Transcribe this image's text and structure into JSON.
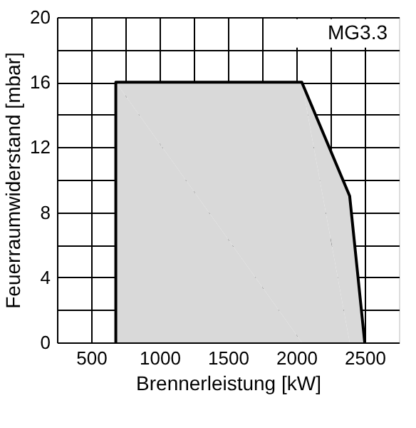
{
  "chart_data": {
    "type": "area",
    "xlabel": "Brennerleistung  [kW]",
    "ylabel": "Feuerraumwiderstand [mbar]",
    "annotations": [
      "MG3.3"
    ],
    "series": [
      {
        "color": "#d9d9d9",
        "x": [
          680,
          680,
          2040,
          2390,
          2500
        ],
        "values": [
          0,
          16,
          16,
          9,
          0
        ]
      }
    ],
    "xlim": [
      250,
      2750
    ],
    "ylim": [
      0,
      20
    ],
    "xticks": [
      500,
      {
        "value": 750,
        "label": null
      },
      1000,
      {
        "value": 1250,
        "label": null
      },
      1500,
      {
        "value": 1750,
        "label": null
      },
      2000,
      {
        "value": 2250,
        "label": null
      },
      2500
    ],
    "yticks": [
      0,
      {
        "value": 2,
        "label": null
      },
      4,
      {
        "value": 6,
        "label": null
      },
      8,
      {
        "value": 10,
        "label": null
      },
      12,
      {
        "value": 14,
        "label": null
      },
      16,
      {
        "value": 18,
        "label": null
      },
      20
    ],
    "grid": true
  }
}
